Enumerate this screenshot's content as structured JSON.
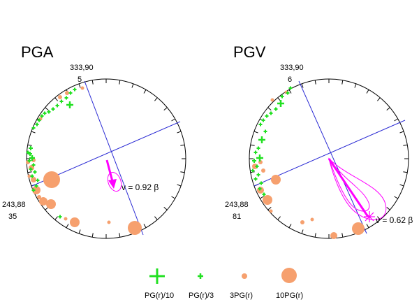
{
  "panels": [
    {
      "title": "PGA",
      "top_label_1": "333,90",
      "top_label_2": "5",
      "left_label_1": "243,88",
      "left_label_2": "35",
      "velocity_label": "v = 0.92 β"
    },
    {
      "title": "PGV",
      "top_label_1": "333,90",
      "top_label_2": "6",
      "left_label_1": "243,88",
      "left_label_2": "81",
      "velocity_label": "v = 0.62 β"
    }
  ],
  "legend": {
    "items": [
      {
        "label": "PG(r)/10",
        "symbol": "large-cross"
      },
      {
        "label": "PG(r)/3",
        "symbol": "small-cross"
      },
      {
        "label": "3PG(r)",
        "symbol": "small-circle"
      },
      {
        "label": "10PG(r)",
        "symbol": "large-circle"
      }
    ]
  },
  "colors": {
    "cross": "#22e022",
    "circle": "#f6a06e",
    "plane": "#2b2bd4",
    "vector": "#ff00ff",
    "outline": "#000000"
  }
}
